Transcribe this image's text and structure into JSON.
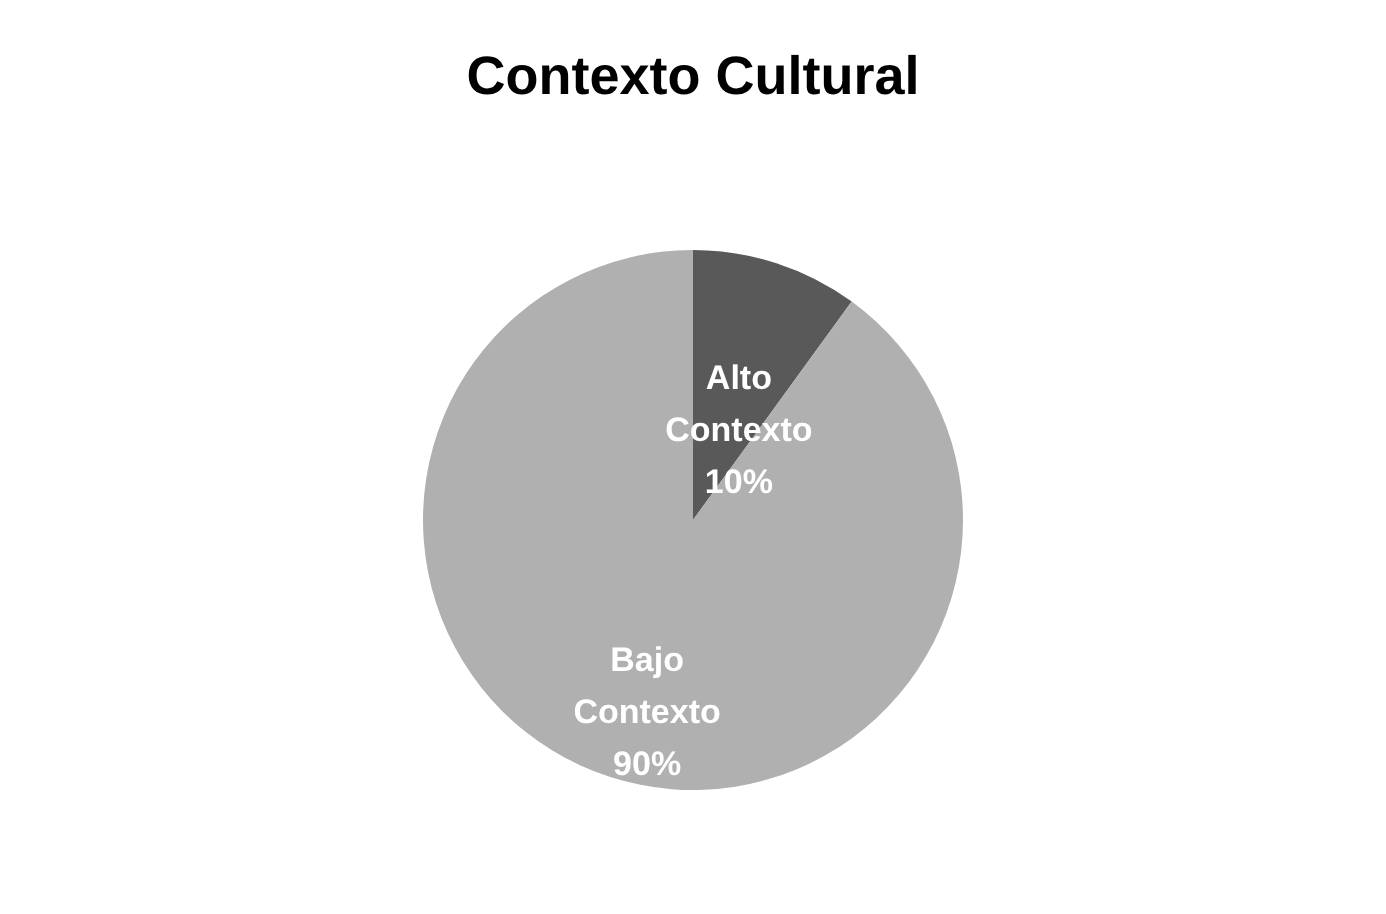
{
  "chart_data": {
    "type": "pie",
    "title": "Contexto Cultural",
    "categories": [
      "Alto Contexto",
      "Bajo Contexto"
    ],
    "values": [
      10,
      90
    ],
    "colors": [
      "#595959",
      "#b0b0b0"
    ],
    "value_labels": [
      "10%",
      "90%"
    ],
    "legend": false
  }
}
